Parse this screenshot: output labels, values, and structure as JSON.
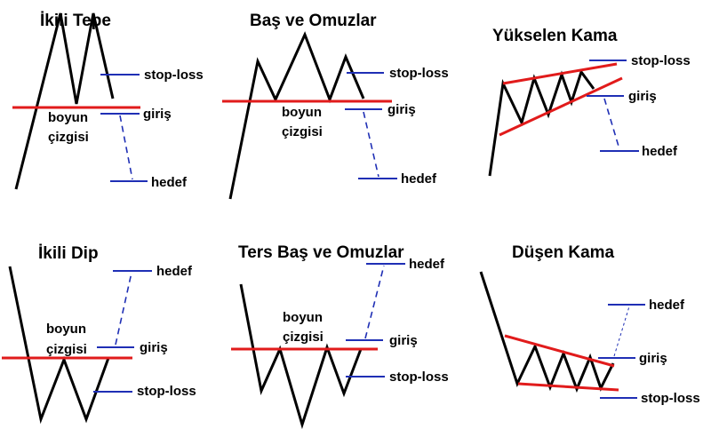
{
  "colors": {
    "price_line": "#000000",
    "neckline": "#e11b1b",
    "levels": "#1f2fb5",
    "text": "#000000",
    "background": "#ffffff"
  },
  "patterns": [
    {
      "id": "ikili-tepe",
      "title": "İkili Tepe",
      "neckline_label_1": "boyun",
      "neckline_label_2": "çizgisi",
      "stop_loss": "stop-loss",
      "entry": "giriş",
      "target": "hedef"
    },
    {
      "id": "bas-ve-omuzlar",
      "title": "Baş ve Omuzlar",
      "neckline_label_1": "boyun",
      "neckline_label_2": "çizgisi",
      "stop_loss": "stop-loss",
      "entry": "giriş",
      "target": "hedef"
    },
    {
      "id": "yukselen-kama",
      "title": "Yükselen Kama",
      "stop_loss": "stop-loss",
      "entry": "giriş",
      "target": "hedef"
    },
    {
      "id": "ikili-dip",
      "title": "İkili Dip",
      "neckline_label_1": "boyun",
      "neckline_label_2": "çizgisi",
      "stop_loss": "stop-loss",
      "entry": "giriş",
      "target": "hedef"
    },
    {
      "id": "ters-bas-ve-omuzlar",
      "title": "Ters Baş ve Omuzlar",
      "neckline_label_1": "boyun",
      "neckline_label_2": "çizgisi",
      "stop_loss": "stop-loss",
      "entry": "giriş",
      "target": "hedef"
    },
    {
      "id": "dusen-kama",
      "title": "Düşen Kama",
      "stop_loss": "stop-loss",
      "entry": "giriş",
      "target": "hedef"
    }
  ]
}
